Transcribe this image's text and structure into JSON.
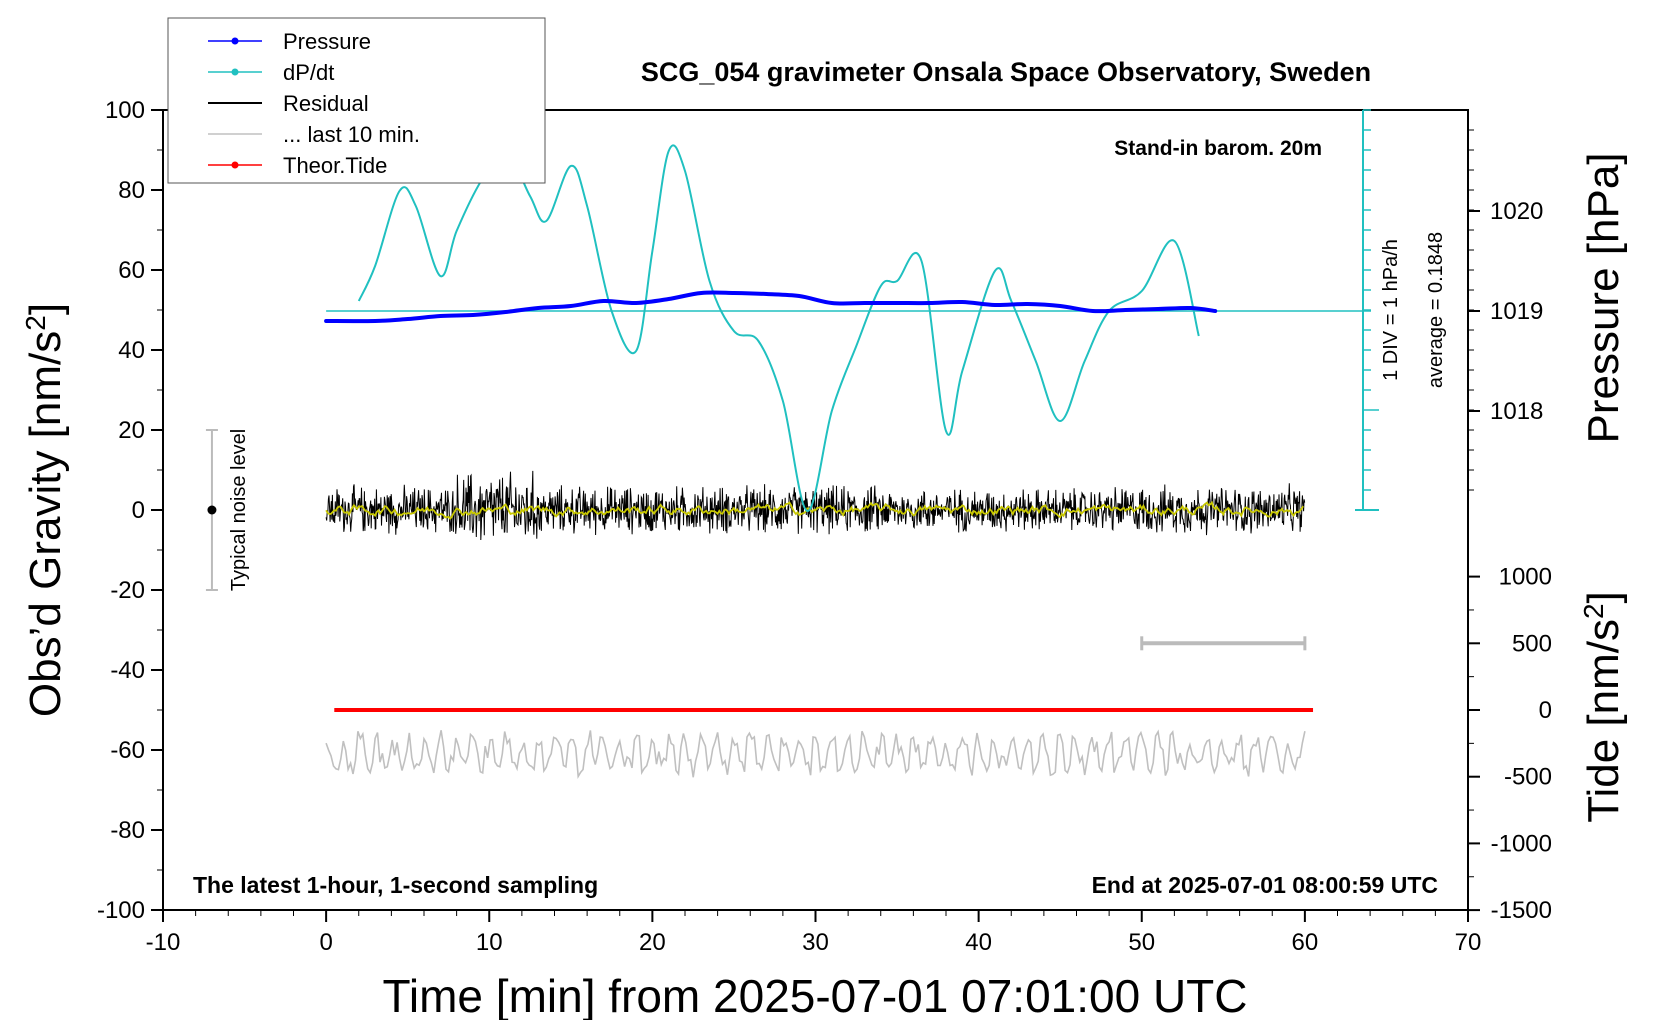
{
  "chart_data": {
    "type": "line",
    "title": "SCG_054 gravimeter Onsala Space Observatory, Sweden",
    "xlabel": "Time [min] from 2025-07-01 07:01:00 UTC",
    "ylabel": "Obs’d Gravity [nm/s",
    "ylabel_sup": "2",
    "ylabel_end": "]",
    "y2label": "Pressure [hPa]",
    "y3label": "Tide [nm/s",
    "y3label_sup": "2",
    "y3label_end": "]",
    "xlim": [
      -10,
      70
    ],
    "ylim": [
      -100,
      100
    ],
    "x_ticks": [
      "-10",
      "0",
      "10",
      "20",
      "30",
      "40",
      "50",
      "60",
      "70"
    ],
    "y_ticks": [
      "100",
      "80",
      "60",
      "40",
      "20",
      "0",
      "-20",
      "-40",
      "-60",
      "-80",
      "-100"
    ],
    "pressure_ticks": [
      "1020",
      "1019",
      "1018"
    ],
    "tide_ticks": [
      "1000",
      "500",
      "0",
      "-500",
      "-1000",
      "-1500"
    ],
    "annotation_top_right": "Stand-in barom. 20m",
    "annotation_bottom_left": "The latest 1-hour, 1-second sampling",
    "annotation_bottom_right": "End at 2025-07-01 08:00:59 UTC",
    "dpdt_scale": "1 DIV = 1 hPa/h",
    "dpdt_average": "average = 0.1848",
    "noise_label": "Typical noise level",
    "noise_bar": {
      "x": -7,
      "center": 0,
      "half_range": 20
    },
    "grid": false,
    "legend_position": "top-left",
    "legend": [
      {
        "name": "Pressure",
        "color": "#0000ff",
        "marker": true
      },
      {
        "name": "dP/dt",
        "color": "#20c0c0",
        "marker": true
      },
      {
        "name": "Residual",
        "color": "#000000",
        "marker": false
      },
      {
        "name": "... last 10 min.",
        "color": "#c0c0c0",
        "marker": false
      },
      {
        "name": "Theor.Tide",
        "color": "#ff0000",
        "marker": true
      }
    ],
    "colors": {
      "pressure": "#0000ff",
      "dpdt": "#20c0c0",
      "residual": "#000000",
      "residual_smooth": "#c8c800",
      "last10": "#c0c0c0",
      "tide": "#ff0000"
    },
    "series": [
      {
        "key": "pressure",
        "unit": "hPa",
        "x": [
          0,
          3,
          5,
          7,
          9,
          11,
          13,
          15,
          17,
          19,
          21,
          23,
          25,
          27,
          29,
          31,
          33,
          35,
          37,
          39,
          41,
          43,
          45,
          47,
          49,
          51,
          53,
          54.5
        ],
        "values": [
          1018.9,
          1018.9,
          1018.92,
          1018.95,
          1018.96,
          1018.99,
          1019.03,
          1019.05,
          1019.1,
          1019.08,
          1019.12,
          1019.18,
          1019.18,
          1019.17,
          1019.15,
          1019.08,
          1019.08,
          1019.08,
          1019.08,
          1019.09,
          1019.06,
          1019.07,
          1019.05,
          1019.0,
          1019.01,
          1019.02,
          1019.03,
          1019.0
        ]
      },
      {
        "key": "dpdt",
        "unit": "hPa/h",
        "baseline_pressure": 1019,
        "x": [
          2,
          3,
          4.5,
          5.5,
          7,
          8,
          9.5,
          11,
          12.5,
          13.5,
          15,
          16,
          17.5,
          19,
          20,
          21,
          22,
          23.5,
          25,
          26.5,
          28,
          29.5,
          31,
          32.5,
          34,
          35,
          36.5,
          38,
          39,
          41,
          42,
          43.5,
          45,
          46.5,
          48,
          50,
          52,
          53.5,
          52
        ],
        "values": [
          0.1,
          0.45,
          1.2,
          1.05,
          0.35,
          0.8,
          1.3,
          1.6,
          1.15,
          0.9,
          1.45,
          1.05,
          0.0,
          -0.4,
          0.6,
          1.6,
          1.4,
          0.3,
          -0.2,
          -0.3,
          -0.9,
          -2.0,
          -1.0,
          -0.35,
          0.25,
          0.3,
          0.5,
          -1.2,
          -0.6,
          0.4,
          0.1,
          -0.5,
          -1.1,
          -0.5,
          0.0,
          0.2,
          0.7,
          -0.25,
          -0.25
        ]
      },
      {
        "key": "residual",
        "unit": "nm/s2",
        "x_range": [
          0,
          60
        ],
        "typical_amplitude": 5
      },
      {
        "key": "last10",
        "unit": "nm/s2",
        "x_range": [
          0,
          60
        ],
        "center": -61,
        "typical_amplitude": 4
      },
      {
        "key": "tide",
        "unit": "nm/s2",
        "x": [
          0.5,
          60.5
        ],
        "values": [
          0,
          0
        ]
      }
    ],
    "tide_range_bar": {
      "x": [
        50,
        60
      ],
      "tide": 500
    }
  }
}
